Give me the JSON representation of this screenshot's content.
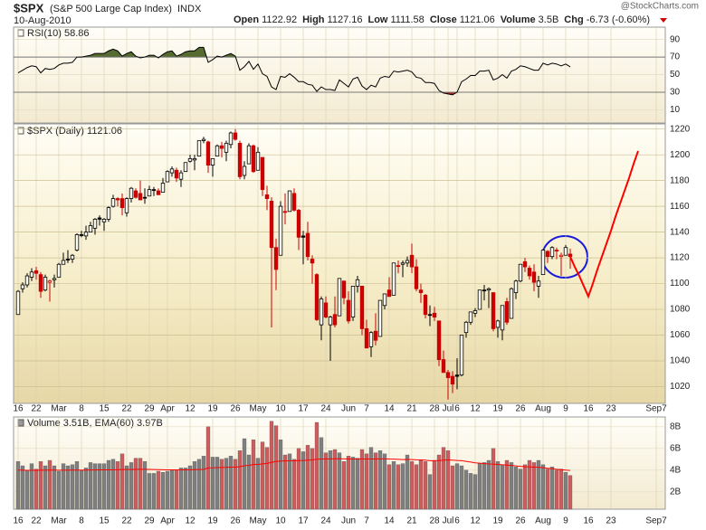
{
  "header": {
    "symbol": "$SPX",
    "name": "(S&P 500 Large Cap Index)",
    "exchange": "INDX",
    "date": "10-Aug-2010",
    "fields": [
      {
        "label": "Open",
        "value": "1122.92"
      },
      {
        "label": "High",
        "value": "1127.16"
      },
      {
        "label": "Low",
        "value": "1111.58"
      },
      {
        "label": "Close",
        "value": "1121.06"
      },
      {
        "label": "Volume",
        "value": "3.5B"
      },
      {
        "label": "Chg",
        "value": "-6.73 (-0.60%)"
      }
    ],
    "credit": "@StockCharts.com"
  },
  "chart_data": {
    "type": "candlestick",
    "label": "$SPX (Daily) 1121.06",
    "categories": [
      "16",
      null,
      null,
      null,
      "22",
      null,
      null,
      null,
      null,
      "Mar",
      null,
      null,
      null,
      null,
      "8",
      null,
      null,
      null,
      null,
      "15",
      null,
      null,
      null,
      null,
      "22",
      null,
      null,
      null,
      null,
      "29",
      null,
      null,
      null,
      "Apr",
      null,
      null,
      null,
      null,
      "12",
      null,
      null,
      null,
      null,
      "19",
      null,
      null,
      null,
      null,
      "26",
      null,
      null,
      null,
      null,
      "May",
      null,
      null,
      null,
      null,
      "10",
      null,
      null,
      null,
      null,
      "17",
      null,
      null,
      null,
      null,
      "24",
      null,
      null,
      null,
      null,
      "Jun",
      null,
      null,
      null,
      "7",
      null,
      null,
      null,
      null,
      "14",
      null,
      null,
      null,
      null,
      "21",
      null,
      null,
      null,
      null,
      "28",
      null,
      null,
      "Jul",
      null,
      "6",
      null,
      null,
      null,
      "12",
      null,
      null,
      null,
      null,
      "19",
      null,
      null,
      null,
      null,
      "26",
      null,
      null,
      null,
      null,
      "Aug",
      null,
      null,
      null,
      null,
      "9",
      null,
      null,
      null,
      null,
      "16",
      null,
      null,
      null,
      null,
      "23",
      null,
      null,
      null,
      null,
      null,
      null,
      null,
      null,
      null,
      "Sep7"
    ],
    "open": [
      1076,
      1096,
      1099,
      1105,
      1110,
      1107,
      1095,
      1101,
      1103,
      1105,
      1115,
      1119,
      1119,
      1126,
      1138,
      1137,
      1140,
      1143,
      1151,
      1148,
      1150,
      1160,
      1166,
      1166,
      1155,
      1166,
      1172,
      1170,
      1167,
      1168,
      1173,
      1172,
      1171,
      1179,
      1186,
      1188,
      1181,
      1187,
      1195,
      1196,
      1199,
      1211,
      1210,
      1192,
      1199,
      1207,
      1202,
      1208,
      1217,
      1209,
      1184,
      1193,
      1207,
      1188,
      1198,
      1169,
      1164,
      1128,
      1122,
      1156,
      1156,
      1170,
      1157,
      1137,
      1139,
      1119,
      1107,
      1068,
      1085,
      1068,
      1076,
      1075,
      1102,
      1087,
      1074,
      1098,
      1098,
      1065,
      1051,
      1063,
      1059,
      1083,
      1095,
      1091,
      1114,
      1115,
      1116,
      1122,
      1113,
      1095,
      1091,
      1076,
      1077,
      1071,
      1041,
      1031,
      1028,
      1029,
      1029,
      1062,
      1070,
      1077,
      1080,
      1095,
      1095,
      1093,
      1066,
      1064,
      1086,
      1073,
      1093,
      1102,
      1117,
      1112,
      1109,
      1098,
      1107,
      1125,
      1121,
      1126,
      1121,
      1122,
      1122.92,
      null,
      null,
      null,
      null,
      null,
      null,
      null,
      null,
      null,
      null,
      null,
      null,
      null,
      null,
      null,
      null,
      null,
      null,
      null
    ],
    "high": [
      1095,
      1101,
      1108,
      1112,
      1113,
      1109,
      1107,
      1103,
      1107,
      1116,
      1124,
      1126,
      1123,
      1139,
      1141,
      1145,
      1148,
      1151,
      1153,
      1151,
      1160,
      1169,
      1167,
      1170,
      1167,
      1175,
      1174,
      1180,
      1174,
      1176,
      1175,
      1174,
      1182,
      1188,
      1191,
      1190,
      1188,
      1194,
      1200,
      1200,
      1211,
      1214,
      1211,
      1197,
      1208,
      1210,
      1211,
      1218,
      1220,
      1211,
      1195,
      1209,
      1208,
      1206,
      1198,
      1176,
      1167,
      1135,
      1164,
      1170,
      1172,
      1174,
      1158,
      1141,
      1148,
      1122,
      1108,
      1090,
      1090,
      1075,
      1090,
      1104,
      1102,
      1094,
      1098,
      1106,
      1098,
      1072,
      1063,
      1077,
      1087,
      1092,
      1105,
      1116,
      1118,
      1118,
      1121,
      1131,
      1119,
      1100,
      1092,
      1083,
      1082,
      1071,
      1048,
      1033,
      1032,
      1042,
      1060,
      1071,
      1078,
      1081,
      1095,
      1099,
      1097,
      1093,
      1072,
      1083,
      1089,
      1097,
      1103,
      1115,
      1120,
      1114,
      1115,
      1106,
      1127,
      1126,
      1129,
      1128,
      1124,
      1130,
      1127.16,
      null,
      null,
      null,
      null,
      null,
      null,
      null,
      null,
      null,
      null,
      null,
      null,
      null,
      null,
      null,
      null,
      null,
      null,
      null
    ],
    "low": [
      1076,
      1093,
      1097,
      1102,
      1103,
      1089,
      1094,
      1086,
      1097,
      1105,
      1115,
      1116,
      1116,
      1125,
      1136,
      1134,
      1140,
      1138,
      1145,
      1141,
      1148,
      1159,
      1160,
      1153,
      1152,
      1163,
      1166,
      1165,
      1162,
      1168,
      1168,
      1169,
      1171,
      1179,
      1183,
      1179,
      1175,
      1187,
      1194,
      1188,
      1199,
      1209,
      1186,
      1183,
      1199,
      1198,
      1195,
      1205,
      1211,
      1181,
      1181,
      1193,
      1186,
      1188,
      1168,
      1157,
      1066,
      1095,
      1122,
      1146,
      1156,
      1156,
      1126,
      1115,
      1118,
      1100,
      1071,
      1056,
      1073,
      1040,
      1066,
      1075,
      1084,
      1069,
      1071,
      1093,
      1060,
      1050,
      1043,
      1052,
      1059,
      1080,
      1090,
      1091,
      1108,
      1105,
      1113,
      1108,
      1094,
      1085,
      1073,
      1067,
      1071,
      1036,
      1031,
      1010,
      1015,
      1018,
      1028,
      1058,
      1068,
      1074,
      1080,
      1087,
      1081,
      1063,
      1058,
      1056,
      1068,
      1073,
      1088,
      1101,
      1109,
      1103,
      1094,
      1089,
      1107,
      1116,
      1119,
      1119,
      1106,
      1122,
      1111.58,
      null,
      null,
      null,
      null,
      null,
      null,
      null,
      null,
      null,
      null,
      null,
      null,
      null,
      null,
      null,
      null,
      null,
      null,
      null
    ],
    "close": [
      1094,
      1099,
      1106,
      1109,
      1108,
      1094,
      1105,
      1102,
      1104,
      1115,
      1118,
      1119,
      1122,
      1138,
      1138,
      1140,
      1145,
      1150,
      1150,
      1150,
      1159,
      1166,
      1165,
      1159,
      1166,
      1174,
      1167,
      1165,
      1167,
      1173,
      1173,
      1169,
      1178,
      1187,
      1189,
      1182,
      1186,
      1194,
      1197,
      1197,
      1211,
      1212,
      1192,
      1197,
      1207,
      1205,
      1209,
      1217,
      1212,
      1183,
      1191,
      1207,
      1187,
      1202,
      1173,
      1166,
      1128,
      1111,
      1160,
      1156,
      1172,
      1157,
      1136,
      1136,
      1121,
      1116,
      1072,
      1088,
      1074,
      1074,
      1068,
      1104,
      1089,
      1071,
      1098,
      1103,
      1065,
      1050,
      1062,
      1056,
      1087,
      1092,
      1090,
      1116,
      1114,
      1116,
      1118,
      1113,
      1096,
      1093,
      1076,
      1076,
      1074,
      1041,
      1031,
      1027,
      1022,
      1028,
      1060,
      1070,
      1078,
      1079,
      1095,
      1095,
      1096,
      1065,
      1071,
      1083,
      1070,
      1096,
      1102,
      1115,
      1113,
      1106,
      1101,
      1102,
      1126,
      1121,
      1128,
      1126,
      1122,
      1128,
      1121.06,
      null,
      null,
      null,
      null,
      null,
      null,
      null,
      null,
      null,
      null,
      null,
      null,
      null,
      null,
      null,
      null,
      null,
      null,
      null
    ],
    "up_color": "#000000",
    "down_color": "#cc0000",
    "ylim": [
      1007,
      1224
    ],
    "yticks": [
      1020,
      1040,
      1060,
      1080,
      1100,
      1120,
      1140,
      1160,
      1180,
      1200,
      1220
    ],
    "grid": true,
    "forecast": {
      "color": "#ff0000",
      "values": [
        null,
        null,
        null,
        null,
        null,
        null,
        null,
        null,
        null,
        null,
        null,
        null,
        null,
        null,
        null,
        null,
        null,
        null,
        null,
        null,
        null,
        null,
        null,
        null,
        null,
        null,
        null,
        null,
        null,
        null,
        null,
        null,
        null,
        null,
        null,
        null,
        null,
        null,
        null,
        null,
        null,
        null,
        null,
        null,
        null,
        null,
        null,
        null,
        null,
        null,
        null,
        null,
        null,
        null,
        null,
        null,
        null,
        null,
        null,
        null,
        null,
        null,
        null,
        null,
        null,
        null,
        null,
        null,
        null,
        null,
        null,
        null,
        null,
        null,
        null,
        null,
        null,
        null,
        null,
        null,
        null,
        null,
        null,
        null,
        null,
        null,
        null,
        null,
        null,
        null,
        null,
        null,
        null,
        null,
        null,
        null,
        null,
        null,
        null,
        null,
        null,
        null,
        null,
        null,
        null,
        null,
        null,
        null,
        null,
        null,
        null,
        null,
        null,
        null,
        null,
        null,
        null,
        null,
        null,
        null,
        null,
        null,
        1121,
        1113,
        1106,
        1098,
        1090,
        1100,
        1111,
        1121,
        1131,
        1141,
        1152,
        1162,
        1172,
        1182,
        1193,
        1203,
        null,
        null,
        null,
        null
      ]
    },
    "rsi": {
      "type": "line",
      "label": "RSI(10) 58.86",
      "color": "#000000",
      "values": [
        52,
        55,
        58,
        60,
        59,
        52,
        57,
        56,
        57,
        61,
        63,
        63,
        64,
        70,
        70,
        71,
        72,
        74,
        74,
        74,
        77,
        79,
        77,
        71,
        74,
        76,
        71,
        69,
        70,
        72,
        72,
        69,
        73,
        76,
        77,
        71,
        73,
        76,
        77,
        77,
        81,
        81,
        64,
        67,
        71,
        70,
        72,
        74,
        71,
        55,
        59,
        65,
        56,
        62,
        51,
        48,
        36,
        33,
        48,
        47,
        51,
        47,
        42,
        42,
        39,
        38,
        31,
        36,
        33,
        33,
        32,
        44,
        40,
        36,
        45,
        47,
        37,
        33,
        38,
        36,
        46,
        48,
        47,
        54,
        53,
        54,
        55,
        53,
        47,
        46,
        41,
        41,
        40,
        32,
        29,
        28,
        27,
        30,
        42,
        45,
        49,
        49,
        54,
        54,
        55,
        44,
        46,
        50,
        46,
        54,
        56,
        60,
        59,
        57,
        55,
        55,
        63,
        61,
        63,
        62,
        60,
        62,
        58.86,
        null,
        null,
        null,
        null,
        null,
        null,
        null,
        null,
        null,
        null,
        null,
        null,
        null,
        null,
        null,
        null,
        null,
        null,
        null
      ],
      "ylim": [
        -5,
        104
      ],
      "yticks": [
        10,
        30,
        50,
        70,
        90
      ],
      "overbought": 70,
      "oversold": 30,
      "overbought_color": "#556b2f",
      "oversold_color": "#b22222"
    },
    "volume": {
      "type": "bar",
      "label": "Volume 3.51B, EMA(60) 3.97B",
      "values": [
        4.8,
        4.4,
        4.0,
        4.6,
        4.1,
        4.8,
        4.4,
        4.9,
        4.4,
        3.9,
        4.6,
        4.4,
        4.5,
        4.8,
        4.0,
        4.2,
        4.7,
        4.6,
        4.6,
        4.6,
        4.9,
        5.0,
        4.8,
        5.5,
        4.4,
        4.7,
        5.1,
        5.1,
        4.8,
        3.7,
        3.7,
        3.9,
        3.8,
        3.9,
        4.0,
        4.0,
        4.2,
        4.2,
        4.4,
        4.8,
        5.0,
        5.3,
        8.0,
        5.2,
        5.2,
        5.0,
        5.1,
        5.3,
        5.0,
        5.8,
        6.9,
        5.4,
        6.8,
        5.1,
        6.6,
        6.1,
        8.5,
        8.1,
        6.8,
        5.4,
        5.5,
        5.0,
        6.0,
        5.7,
        6.3,
        6.0,
        8.4,
        7.0,
        5.6,
        5.8,
        5.9,
        5.6,
        4.8,
        5.3,
        5.2,
        5.1,
        5.9,
        5.5,
        6.1,
        5.6,
        5.8,
        5.5,
        4.5,
        4.8,
        4.5,
        4.6,
        5.4,
        4.8,
        4.5,
        4.9,
        4.8,
        3.6,
        4.9,
        5.4,
        6.1,
        5.8,
        4.4,
        4.6,
        4.4,
        4.0,
        3.7,
        3.6,
        4.6,
        4.7,
        4.9,
        6.0,
        4.8,
        4.5,
        4.9,
        4.7,
        4.3,
        4.1,
        4.5,
        4.9,
        4.7,
        4.9,
        4.5,
        4.1,
        4.3,
        4.0,
        4.1,
        3.8,
        3.51,
        null,
        null,
        null,
        null,
        null,
        null,
        null,
        null,
        null,
        null,
        null,
        null,
        null,
        null,
        null,
        null,
        null,
        null,
        null
      ],
      "ema": {
        "color": "#ff0000",
        "values": [
          4.0,
          3.99,
          3.98,
          3.98,
          3.98,
          3.99,
          3.99,
          4.0,
          4.0,
          3.99,
          3.99,
          3.99,
          4.0,
          4.0,
          4.0,
          4.0,
          4.01,
          4.01,
          4.02,
          4.02,
          4.03,
          4.04,
          4.04,
          4.06,
          4.06,
          4.06,
          4.07,
          4.08,
          4.08,
          4.07,
          4.06,
          4.05,
          4.04,
          4.03,
          4.03,
          4.03,
          4.03,
          4.03,
          4.04,
          4.05,
          4.06,
          4.07,
          4.2,
          4.21,
          4.23,
          4.24,
          4.25,
          4.27,
          4.28,
          4.32,
          4.41,
          4.43,
          4.52,
          4.53,
          4.58,
          4.62,
          4.72,
          4.8,
          4.84,
          4.85,
          4.86,
          4.86,
          4.88,
          4.89,
          4.92,
          4.94,
          5.0,
          5.03,
          5.04,
          5.04,
          5.05,
          5.06,
          5.04,
          5.03,
          5.02,
          5.01,
          5.02,
          5.02,
          5.03,
          5.03,
          5.04,
          5.04,
          5.02,
          5.01,
          4.99,
          4.97,
          4.98,
          4.97,
          4.95,
          4.94,
          4.92,
          4.87,
          4.87,
          4.88,
          4.92,
          4.94,
          4.92,
          4.89,
          4.87,
          4.81,
          4.74,
          4.67,
          4.64,
          4.6,
          4.57,
          4.56,
          4.53,
          4.49,
          4.46,
          4.43,
          4.39,
          4.35,
          4.32,
          4.3,
          4.28,
          4.26,
          4.22,
          4.17,
          4.13,
          4.08,
          4.04,
          4.0,
          3.97,
          null,
          null,
          null,
          null,
          null,
          null,
          null,
          null,
          null,
          null,
          null,
          null,
          null,
          null,
          null,
          null,
          null,
          null,
          null
        ]
      },
      "up_color": "#7f7f7f",
      "down_color": "#cd5c5c",
      "ylim": [
        0.4,
        8.9
      ],
      "yticks": [
        {
          "value": 2,
          "label": "2B"
        },
        {
          "value": 4,
          "label": "4B"
        },
        {
          "value": 6,
          "label": "6B"
        },
        {
          "value": 8,
          "label": "8B"
        }
      ]
    }
  }
}
